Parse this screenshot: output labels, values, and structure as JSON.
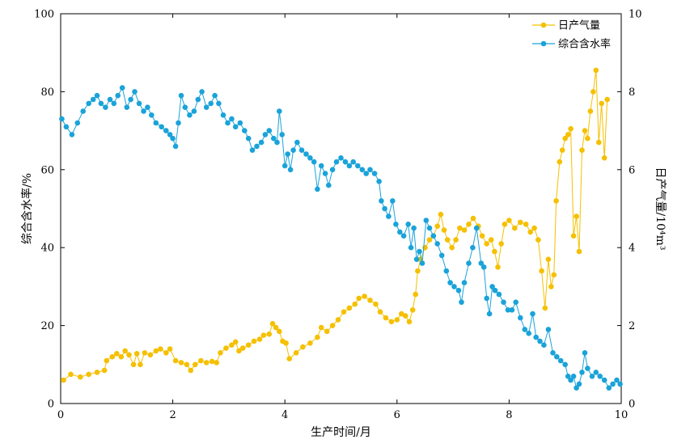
{
  "chart_data": {
    "type": "line",
    "xlabel": "生产时间/月",
    "ylabel_left": "综合含水率/%",
    "ylabel_right": "日产气量/10⁴m³",
    "xlim": [
      0,
      10
    ],
    "ylim_left": [
      0,
      100
    ],
    "ylim_right": [
      0,
      10
    ],
    "x_ticks": [
      "0",
      "2",
      "4",
      "6",
      "8",
      "10"
    ],
    "y_left_ticks": [
      "0",
      "20",
      "40",
      "60",
      "80",
      "100"
    ],
    "y_right_ticks": [
      "0",
      "2",
      "4",
      "6",
      "8",
      "10"
    ],
    "legend_position": "top-right",
    "grid": false,
    "series": [
      {
        "name": "日产气量",
        "axis": "right",
        "color": "#F5C000",
        "points": [
          [
            0.05,
            0.6
          ],
          [
            0.18,
            0.75
          ],
          [
            0.35,
            0.68
          ],
          [
            0.5,
            0.75
          ],
          [
            0.65,
            0.8
          ],
          [
            0.78,
            0.85
          ],
          [
            0.82,
            1.1
          ],
          [
            0.92,
            1.2
          ],
          [
            1.0,
            1.28
          ],
          [
            1.08,
            1.2
          ],
          [
            1.15,
            1.35
          ],
          [
            1.22,
            1.25
          ],
          [
            1.3,
            1.0
          ],
          [
            1.36,
            1.28
          ],
          [
            1.42,
            1.0
          ],
          [
            1.5,
            1.3
          ],
          [
            1.6,
            1.25
          ],
          [
            1.7,
            1.35
          ],
          [
            1.78,
            1.4
          ],
          [
            1.88,
            1.3
          ],
          [
            1.95,
            1.4
          ],
          [
            2.05,
            1.1
          ],
          [
            2.15,
            1.05
          ],
          [
            2.25,
            1.0
          ],
          [
            2.32,
            0.85
          ],
          [
            2.4,
            1.0
          ],
          [
            2.5,
            1.1
          ],
          [
            2.6,
            1.05
          ],
          [
            2.7,
            1.08
          ],
          [
            2.78,
            1.05
          ],
          [
            2.85,
            1.3
          ],
          [
            2.95,
            1.42
          ],
          [
            3.05,
            1.5
          ],
          [
            3.12,
            1.58
          ],
          [
            3.18,
            1.35
          ],
          [
            3.25,
            1.42
          ],
          [
            3.35,
            1.5
          ],
          [
            3.45,
            1.6
          ],
          [
            3.55,
            1.65
          ],
          [
            3.62,
            1.75
          ],
          [
            3.72,
            1.78
          ],
          [
            3.78,
            2.05
          ],
          [
            3.84,
            1.95
          ],
          [
            3.9,
            1.85
          ],
          [
            3.96,
            1.6
          ],
          [
            4.02,
            1.55
          ],
          [
            4.08,
            1.15
          ],
          [
            4.2,
            1.3
          ],
          [
            4.32,
            1.45
          ],
          [
            4.45,
            1.55
          ],
          [
            4.58,
            1.7
          ],
          [
            4.65,
            1.95
          ],
          [
            4.75,
            1.85
          ],
          [
            4.85,
            2.0
          ],
          [
            4.95,
            2.15
          ],
          [
            5.05,
            2.35
          ],
          [
            5.15,
            2.45
          ],
          [
            5.25,
            2.55
          ],
          [
            5.32,
            2.7
          ],
          [
            5.42,
            2.75
          ],
          [
            5.52,
            2.65
          ],
          [
            5.62,
            2.55
          ],
          [
            5.7,
            2.35
          ],
          [
            5.8,
            2.2
          ],
          [
            5.9,
            2.1
          ],
          [
            6.0,
            2.15
          ],
          [
            6.08,
            2.3
          ],
          [
            6.15,
            2.25
          ],
          [
            6.22,
            2.1
          ],
          [
            6.28,
            2.4
          ],
          [
            6.33,
            2.8
          ],
          [
            6.37,
            3.4
          ],
          [
            6.42,
            3.7
          ],
          [
            6.5,
            4.0
          ],
          [
            6.58,
            4.2
          ],
          [
            6.65,
            4.3
          ],
          [
            6.72,
            4.55
          ],
          [
            6.78,
            4.85
          ],
          [
            6.84,
            4.45
          ],
          [
            6.9,
            4.2
          ],
          [
            6.98,
            4.0
          ],
          [
            7.05,
            4.2
          ],
          [
            7.12,
            4.5
          ],
          [
            7.2,
            4.45
          ],
          [
            7.28,
            4.6
          ],
          [
            7.36,
            4.75
          ],
          [
            7.45,
            4.55
          ],
          [
            7.52,
            4.3
          ],
          [
            7.6,
            4.1
          ],
          [
            7.68,
            4.2
          ],
          [
            7.74,
            3.9
          ],
          [
            7.8,
            3.5
          ],
          [
            7.86,
            4.1
          ],
          [
            7.92,
            4.6
          ],
          [
            8.0,
            4.7
          ],
          [
            8.1,
            4.5
          ],
          [
            8.2,
            4.65
          ],
          [
            8.3,
            4.6
          ],
          [
            8.38,
            4.4
          ],
          [
            8.45,
            4.5
          ],
          [
            8.52,
            4.2
          ],
          [
            8.58,
            3.4
          ],
          [
            8.64,
            2.45
          ],
          [
            8.7,
            3.7
          ],
          [
            8.75,
            3.0
          ],
          [
            8.8,
            3.3
          ],
          [
            8.84,
            5.2
          ],
          [
            8.9,
            6.2
          ],
          [
            8.95,
            6.5
          ],
          [
            9.0,
            6.8
          ],
          [
            9.05,
            6.9
          ],
          [
            9.1,
            7.05
          ],
          [
            9.15,
            4.3
          ],
          [
            9.2,
            4.8
          ],
          [
            9.25,
            3.9
          ],
          [
            9.3,
            6.5
          ],
          [
            9.35,
            7.0
          ],
          [
            9.4,
            6.8
          ],
          [
            9.45,
            7.5
          ],
          [
            9.5,
            8.0
          ],
          [
            9.55,
            8.55
          ],
          [
            9.6,
            6.7
          ],
          [
            9.65,
            7.7
          ],
          [
            9.7,
            6.3
          ],
          [
            9.75,
            7.8
          ]
        ]
      },
      {
        "name": "综合含水率",
        "axis": "left",
        "color": "#1AA3D9",
        "points": [
          [
            0.02,
            73
          ],
          [
            0.1,
            71
          ],
          [
            0.2,
            69
          ],
          [
            0.3,
            72
          ],
          [
            0.4,
            75
          ],
          [
            0.5,
            77
          ],
          [
            0.58,
            78
          ],
          [
            0.65,
            79
          ],
          [
            0.72,
            77
          ],
          [
            0.8,
            76
          ],
          [
            0.88,
            78
          ],
          [
            0.95,
            77
          ],
          [
            1.02,
            79
          ],
          [
            1.1,
            81
          ],
          [
            1.18,
            76
          ],
          [
            1.25,
            78
          ],
          [
            1.32,
            80
          ],
          [
            1.4,
            77
          ],
          [
            1.48,
            75
          ],
          [
            1.55,
            76
          ],
          [
            1.62,
            74
          ],
          [
            1.7,
            72
          ],
          [
            1.8,
            71
          ],
          [
            1.88,
            70
          ],
          [
            1.95,
            69
          ],
          [
            2.0,
            68
          ],
          [
            2.05,
            66
          ],
          [
            2.1,
            72
          ],
          [
            2.15,
            79
          ],
          [
            2.22,
            76
          ],
          [
            2.3,
            74
          ],
          [
            2.38,
            75
          ],
          [
            2.45,
            78
          ],
          [
            2.52,
            80
          ],
          [
            2.6,
            76
          ],
          [
            2.68,
            77
          ],
          [
            2.75,
            79
          ],
          [
            2.82,
            77
          ],
          [
            2.9,
            74
          ],
          [
            2.98,
            72
          ],
          [
            3.05,
            73
          ],
          [
            3.12,
            71
          ],
          [
            3.2,
            72
          ],
          [
            3.28,
            70
          ],
          [
            3.35,
            68
          ],
          [
            3.42,
            65
          ],
          [
            3.5,
            66
          ],
          [
            3.58,
            67
          ],
          [
            3.65,
            69
          ],
          [
            3.72,
            70
          ],
          [
            3.8,
            68
          ],
          [
            3.86,
            67
          ],
          [
            3.9,
            75
          ],
          [
            3.95,
            69
          ],
          [
            4.0,
            61
          ],
          [
            4.05,
            64
          ],
          [
            4.1,
            60
          ],
          [
            4.15,
            65
          ],
          [
            4.22,
            67
          ],
          [
            4.3,
            65
          ],
          [
            4.38,
            64
          ],
          [
            4.45,
            63
          ],
          [
            4.52,
            62
          ],
          [
            4.58,
            55
          ],
          [
            4.65,
            61
          ],
          [
            4.72,
            59
          ],
          [
            4.78,
            56
          ],
          [
            4.85,
            60
          ],
          [
            4.92,
            62
          ],
          [
            5.0,
            63
          ],
          [
            5.08,
            62
          ],
          [
            5.15,
            61
          ],
          [
            5.22,
            62
          ],
          [
            5.3,
            61
          ],
          [
            5.38,
            60
          ],
          [
            5.45,
            59
          ],
          [
            5.52,
            60
          ],
          [
            5.6,
            59
          ],
          [
            5.68,
            57
          ],
          [
            5.72,
            52
          ],
          [
            5.78,
            50
          ],
          [
            5.85,
            48
          ],
          [
            5.92,
            52
          ],
          [
            5.98,
            46
          ],
          [
            6.05,
            44
          ],
          [
            6.12,
            43
          ],
          [
            6.2,
            46
          ],
          [
            6.25,
            40
          ],
          [
            6.3,
            45
          ],
          [
            6.35,
            37
          ],
          [
            6.4,
            39
          ],
          [
            6.45,
            36
          ],
          [
            6.52,
            47
          ],
          [
            6.58,
            45
          ],
          [
            6.65,
            43
          ],
          [
            6.72,
            41
          ],
          [
            6.8,
            38
          ],
          [
            6.88,
            34
          ],
          [
            6.95,
            31
          ],
          [
            7.02,
            30
          ],
          [
            7.1,
            29
          ],
          [
            7.15,
            26
          ],
          [
            7.2,
            31
          ],
          [
            7.28,
            36
          ],
          [
            7.35,
            40
          ],
          [
            7.42,
            45
          ],
          [
            7.5,
            36
          ],
          [
            7.55,
            35
          ],
          [
            7.6,
            27
          ],
          [
            7.65,
            23
          ],
          [
            7.7,
            30
          ],
          [
            7.75,
            29
          ],
          [
            7.82,
            28
          ],
          [
            7.9,
            26
          ],
          [
            7.98,
            24
          ],
          [
            8.05,
            24
          ],
          [
            8.12,
            26
          ],
          [
            8.2,
            22
          ],
          [
            8.28,
            19
          ],
          [
            8.35,
            18
          ],
          [
            8.42,
            23
          ],
          [
            8.48,
            17
          ],
          [
            8.55,
            16
          ],
          [
            8.62,
            15
          ],
          [
            8.7,
            19
          ],
          [
            8.78,
            13
          ],
          [
            8.85,
            12
          ],
          [
            8.92,
            11
          ],
          [
            9.0,
            10
          ],
          [
            9.05,
            7
          ],
          [
            9.1,
            6
          ],
          [
            9.15,
            7
          ],
          [
            9.2,
            4
          ],
          [
            9.25,
            5
          ],
          [
            9.3,
            8
          ],
          [
            9.35,
            13
          ],
          [
            9.4,
            9
          ],
          [
            9.48,
            7
          ],
          [
            9.55,
            8
          ],
          [
            9.62,
            7
          ],
          [
            9.7,
            6
          ],
          [
            9.78,
            4
          ],
          [
            9.85,
            5
          ],
          [
            9.92,
            6
          ],
          [
            9.98,
            5
          ]
        ]
      }
    ]
  }
}
